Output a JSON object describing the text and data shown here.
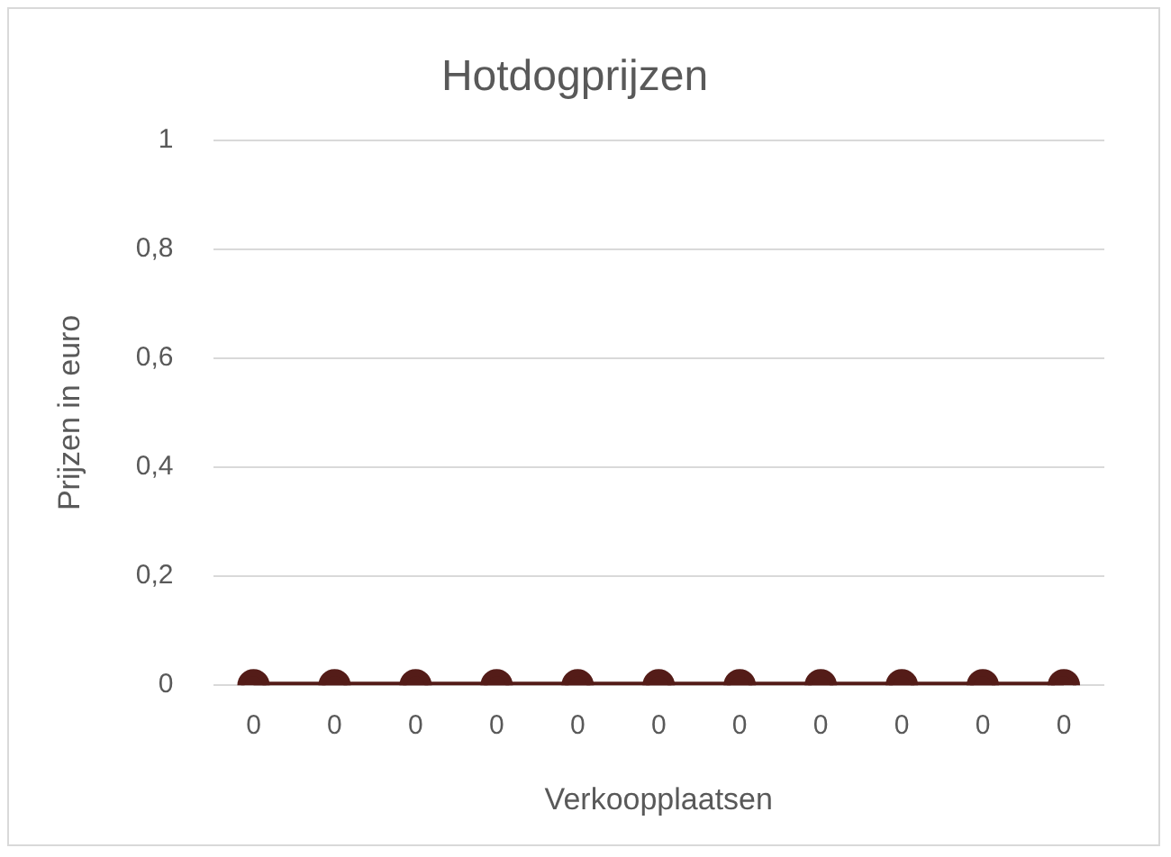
{
  "chart_data": {
    "type": "line",
    "title": "Hotdogprijzen",
    "xlabel": "Verkoopplaatsen",
    "ylabel": "Prijzen in euro",
    "categories": [
      "0",
      "0",
      "0",
      "0",
      "0",
      "0",
      "0",
      "0",
      "0",
      "0",
      "0"
    ],
    "series": [
      {
        "color": "#541c18",
        "values": [
          0,
          0,
          0,
          0,
          0,
          0,
          0,
          0,
          0,
          0,
          0
        ]
      }
    ],
    "ylim": [
      0,
      1
    ],
    "yticks": [
      0,
      {
        "value": 0.2,
        "label": "0,2"
      },
      {
        "value": 0.4,
        "label": "0,4"
      },
      {
        "value": 0.6,
        "label": "0,6"
      },
      {
        "value": 0.8,
        "label": "0,8"
      },
      1
    ],
    "grid": "y",
    "legend": false,
    "marker": "circle",
    "line_style": "solid"
  }
}
